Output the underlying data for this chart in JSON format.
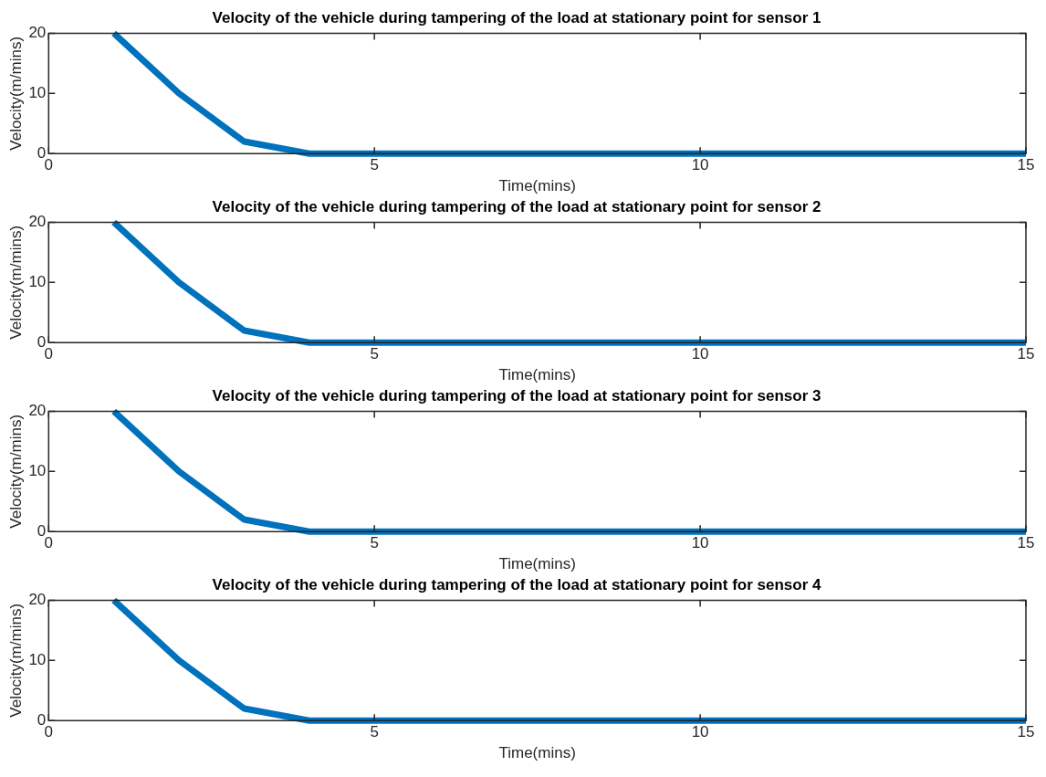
{
  "chart_data": [
    {
      "type": "line",
      "title": "Velocity of the vehicle during tampering of the load at stationary point for sensor 1",
      "xlabel": "Time(mins)",
      "ylabel": "Velocity(m/mins)",
      "x": [
        1,
        2,
        3,
        4,
        5,
        6,
        7,
        8,
        9,
        10,
        11,
        12,
        13,
        14,
        15
      ],
      "series": [
        {
          "color": "#0072bd",
          "values": [
            20,
            10,
            2,
            0,
            0,
            0,
            0,
            0,
            0,
            0,
            0,
            0,
            0,
            0,
            0
          ]
        }
      ],
      "xlim": [
        0,
        15
      ],
      "xticks": [
        0,
        5,
        10,
        15
      ],
      "ylim": [
        0,
        20
      ],
      "yticks": [
        0,
        10,
        20
      ],
      "grid": false,
      "legend": false,
      "marker": "none",
      "line_style": "solid"
    },
    {
      "type": "line",
      "title": "Velocity of the vehicle during tampering of the load at stationary point for sensor 2",
      "xlabel": "Time(mins)",
      "ylabel": "Velocity(m/mins)",
      "x": [
        1,
        2,
        3,
        4,
        5,
        6,
        7,
        8,
        9,
        10,
        11,
        12,
        13,
        14,
        15
      ],
      "series": [
        {
          "color": "#0072bd",
          "values": [
            20,
            10,
            2,
            0,
            0,
            0,
            0,
            0,
            0,
            0,
            0,
            0,
            0,
            0,
            0
          ]
        }
      ],
      "xlim": [
        0,
        15
      ],
      "xticks": [
        0,
        5,
        10,
        15
      ],
      "ylim": [
        0,
        20
      ],
      "yticks": [
        0,
        10,
        20
      ],
      "grid": false,
      "legend": false,
      "marker": "none",
      "line_style": "solid"
    },
    {
      "type": "line",
      "title": "Velocity of the vehicle during tampering of the load at stationary point for sensor 3",
      "xlabel": "Time(mins)",
      "ylabel": "Velocity(m/mins)",
      "x": [
        1,
        2,
        3,
        4,
        5,
        6,
        7,
        8,
        9,
        10,
        11,
        12,
        13,
        14,
        15
      ],
      "series": [
        {
          "color": "#0072bd",
          "values": [
            20,
            10,
            2,
            0,
            0,
            0,
            0,
            0,
            0,
            0,
            0,
            0,
            0,
            0,
            0
          ]
        }
      ],
      "xlim": [
        0,
        15
      ],
      "xticks": [
        0,
        5,
        10,
        15
      ],
      "ylim": [
        0,
        20
      ],
      "yticks": [
        0,
        10,
        20
      ],
      "grid": false,
      "legend": false,
      "marker": "none",
      "line_style": "solid"
    },
    {
      "type": "line",
      "title": "Velocity of the vehicle during tampering of the load at stationary point for sensor 4",
      "xlabel": "Time(mins)",
      "ylabel": "Velocity(m/mins)",
      "x": [
        1,
        2,
        3,
        4,
        5,
        6,
        7,
        8,
        9,
        10,
        11,
        12,
        13,
        14,
        15
      ],
      "series": [
        {
          "color": "#0072bd",
          "values": [
            20,
            10,
            2,
            0,
            0,
            0,
            0,
            0,
            0,
            0,
            0,
            0,
            0,
            0,
            0
          ]
        }
      ],
      "xlim": [
        0,
        15
      ],
      "xticks": [
        0,
        5,
        10,
        15
      ],
      "ylim": [
        0,
        20
      ],
      "yticks": [
        0,
        10,
        20
      ],
      "grid": false,
      "legend": false,
      "marker": "none",
      "line_style": "solid"
    }
  ]
}
